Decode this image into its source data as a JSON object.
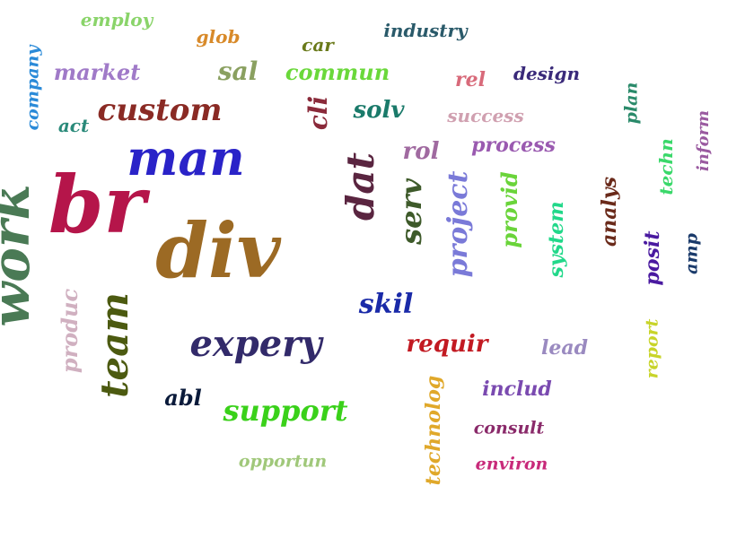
{
  "words": [
    {
      "text": "work",
      "color": "#4a7a55",
      "vertical": true
    },
    {
      "text": "br",
      "color": "#b5154a",
      "vertical": false
    },
    {
      "text": "div",
      "color": "#9c6a24",
      "vertical": false
    },
    {
      "text": "man",
      "color": "#2a23c8",
      "vertical": false
    },
    {
      "text": "custom",
      "color": "#8a2a24",
      "vertical": false
    },
    {
      "text": "team",
      "color": "#4c5a10",
      "vertical": true
    },
    {
      "text": "expery",
      "color": "#322a6a",
      "vertical": false
    },
    {
      "text": "dat",
      "color": "#5a2540",
      "vertical": true
    },
    {
      "text": "serv",
      "color": "#3e5a2a",
      "vertical": true
    },
    {
      "text": "project",
      "color": "#7a7ad8",
      "vertical": true
    },
    {
      "text": "support",
      "color": "#3ad11a",
      "vertical": false
    },
    {
      "text": "skil",
      "color": "#1a2aa8",
      "vertical": false
    },
    {
      "text": "requir",
      "color": "#c21a22",
      "vertical": false
    },
    {
      "text": "provid",
      "color": "#6ad43a",
      "vertical": true
    },
    {
      "text": "system",
      "color": "#22d88a",
      "vertical": true
    },
    {
      "text": "analys",
      "color": "#6a2a1a",
      "vertical": true
    },
    {
      "text": "commun",
      "color": "#6ad83a",
      "vertical": false
    },
    {
      "text": "market",
      "color": "#a07ac8",
      "vertical": false
    },
    {
      "text": "sal",
      "color": "#8aa060",
      "vertical": false
    },
    {
      "text": "cli",
      "color": "#8a2a3a",
      "vertical": true
    },
    {
      "text": "solv",
      "color": "#1a7a6a",
      "vertical": false
    },
    {
      "text": "rol",
      "color": "#a06aa0",
      "vertical": false
    },
    {
      "text": "process",
      "color": "#9a5ab0",
      "vertical": false
    },
    {
      "text": "success",
      "color": "#d0a0b0",
      "vertical": false
    },
    {
      "text": "design",
      "color": "#3a2a7a",
      "vertical": false
    },
    {
      "text": "industry",
      "color": "#2a5a6a",
      "vertical": false
    },
    {
      "text": "rel",
      "color": "#d86a7a",
      "vertical": false
    },
    {
      "text": "glob",
      "color": "#d88a2a",
      "vertical": false
    },
    {
      "text": "car",
      "color": "#6a7a1a",
      "vertical": false
    },
    {
      "text": "employ",
      "color": "#8ad46a",
      "vertical": false
    },
    {
      "text": "company",
      "color": "#2a8ad8",
      "vertical": true
    },
    {
      "text": "act",
      "color": "#2a8a7a",
      "vertical": false
    },
    {
      "text": "produc",
      "color": "#d0b0c0",
      "vertical": true
    },
    {
      "text": "abl",
      "color": "#0a1a3a",
      "vertical": false
    },
    {
      "text": "opportun",
      "color": "#a0c87a",
      "vertical": false
    },
    {
      "text": "technolog",
      "color": "#e0a82a",
      "vertical": true
    },
    {
      "text": "includ",
      "color": "#7a4ab0",
      "vertical": false
    },
    {
      "text": "consult",
      "color": "#8a2a6a",
      "vertical": false
    },
    {
      "text": "environ",
      "color": "#c82a7a",
      "vertical": false
    },
    {
      "text": "lead",
      "color": "#9a8ac0",
      "vertical": false
    },
    {
      "text": "report",
      "color": "#c8d42a",
      "vertical": true
    },
    {
      "text": "posit",
      "color": "#4a1aa0",
      "vertical": true
    },
    {
      "text": "amp",
      "color": "#1a3a6a",
      "vertical": true
    },
    {
      "text": "plan",
      "color": "#2a8a6a",
      "vertical": true
    },
    {
      "text": "techn",
      "color": "#3ad86a",
      "vertical": true
    },
    {
      "text": "inform",
      "color": "#9a5aa0",
      "vertical": true
    }
  ]
}
